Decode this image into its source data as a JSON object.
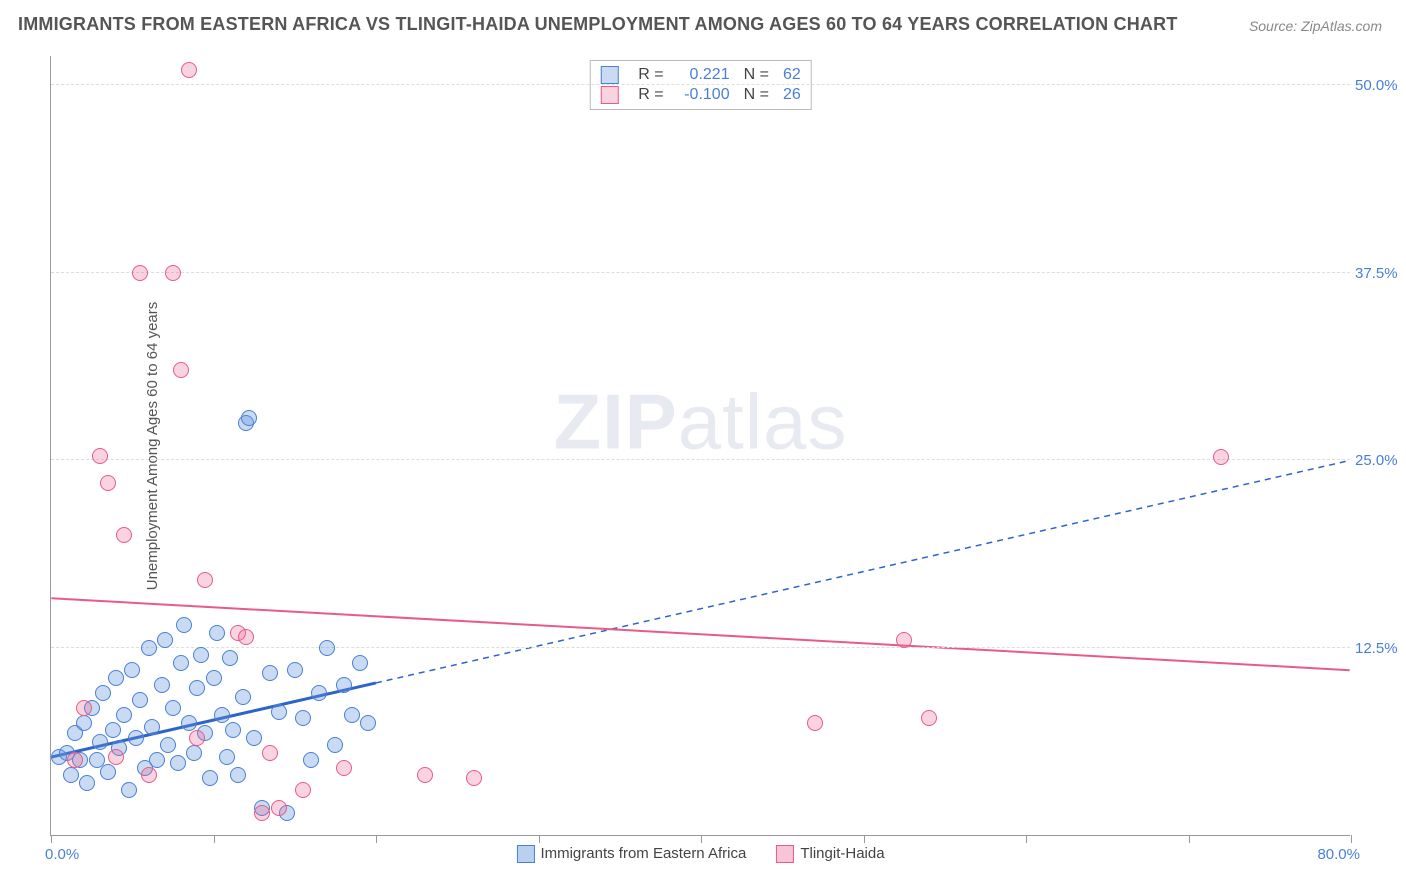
{
  "chart": {
    "type": "scatter",
    "title": "IMMIGRANTS FROM EASTERN AFRICA VS TLINGIT-HAIDA UNEMPLOYMENT AMONG AGES 60 TO 64 YEARS CORRELATION CHART",
    "source": "Source: ZipAtlas.com",
    "ylabel": "Unemployment Among Ages 60 to 64 years",
    "watermark_bold": "ZIP",
    "watermark_thin": "atlas",
    "background_color": "#ffffff",
    "grid_color": "#dddddd",
    "axis_color": "#999999",
    "label_color": "#4a7fd8",
    "xlim": [
      0,
      80
    ],
    "ylim": [
      0,
      52
    ],
    "ytick_positions": [
      12.5,
      25.0,
      37.5,
      50.0
    ],
    "ytick_labels": [
      "12.5%",
      "25.0%",
      "37.5%",
      "50.0%"
    ],
    "xticks_minor": [
      0,
      10,
      20,
      30,
      40,
      50,
      60,
      70,
      80
    ],
    "xtick_left": "0.0%",
    "xtick_right": "80.0%",
    "marker_radius": 8,
    "series": [
      {
        "name": "Immigrants from Eastern Africa",
        "fill": "rgba(100,150,220,0.35)",
        "stroke": "#4a7fd8",
        "r_label": "R =",
        "r_value": "0.221",
        "n_label": "N =",
        "n_value": "62",
        "trend": {
          "color": "#2e63c9",
          "width": 3,
          "solid_x_end": 20,
          "y_at_x0": 5.2,
          "y_at_x80": 25.0
        },
        "points": [
          [
            0.5,
            5.2
          ],
          [
            1.0,
            5.5
          ],
          [
            1.2,
            4.0
          ],
          [
            1.5,
            6.8
          ],
          [
            1.8,
            5.0
          ],
          [
            2.0,
            7.5
          ],
          [
            2.2,
            3.5
          ],
          [
            2.5,
            8.5
          ],
          [
            2.8,
            5.0
          ],
          [
            3.0,
            6.2
          ],
          [
            3.2,
            9.5
          ],
          [
            3.5,
            4.2
          ],
          [
            3.8,
            7.0
          ],
          [
            4.0,
            10.5
          ],
          [
            4.2,
            5.8
          ],
          [
            4.5,
            8.0
          ],
          [
            4.8,
            3.0
          ],
          [
            5.0,
            11.0
          ],
          [
            5.2,
            6.5
          ],
          [
            5.5,
            9.0
          ],
          [
            5.8,
            4.5
          ],
          [
            6.0,
            12.5
          ],
          [
            6.2,
            7.2
          ],
          [
            6.5,
            5.0
          ],
          [
            6.8,
            10.0
          ],
          [
            7.0,
            13.0
          ],
          [
            7.2,
            6.0
          ],
          [
            7.5,
            8.5
          ],
          [
            7.8,
            4.8
          ],
          [
            8.0,
            11.5
          ],
          [
            8.2,
            14.0
          ],
          [
            8.5,
            7.5
          ],
          [
            8.8,
            5.5
          ],
          [
            9.0,
            9.8
          ],
          [
            9.2,
            12.0
          ],
          [
            9.5,
            6.8
          ],
          [
            9.8,
            3.8
          ],
          [
            10.0,
            10.5
          ],
          [
            10.2,
            13.5
          ],
          [
            10.5,
            8.0
          ],
          [
            10.8,
            5.2
          ],
          [
            11.0,
            11.8
          ],
          [
            11.2,
            7.0
          ],
          [
            11.5,
            4.0
          ],
          [
            11.8,
            9.2
          ],
          [
            12.0,
            27.5
          ],
          [
            12.2,
            27.8
          ],
          [
            12.5,
            6.5
          ],
          [
            13.0,
            1.8
          ],
          [
            13.5,
            10.8
          ],
          [
            14.0,
            8.2
          ],
          [
            14.5,
            1.5
          ],
          [
            15.0,
            11.0
          ],
          [
            15.5,
            7.8
          ],
          [
            16.0,
            5.0
          ],
          [
            16.5,
            9.5
          ],
          [
            17.0,
            12.5
          ],
          [
            17.5,
            6.0
          ],
          [
            18.0,
            10.0
          ],
          [
            18.5,
            8.0
          ],
          [
            19.0,
            11.5
          ],
          [
            19.5,
            7.5
          ]
        ]
      },
      {
        "name": "Tlingit-Haida",
        "fill": "rgba(235,110,150,0.30)",
        "stroke": "#e85a8a",
        "r_label": "R =",
        "r_value": "-0.100",
        "n_label": "N =",
        "n_value": "26",
        "trend": {
          "color": "#e85a8a",
          "width": 2,
          "solid_x_end": 80,
          "y_at_x0": 15.8,
          "y_at_x80": 11.0
        },
        "points": [
          [
            1.5,
            5.0
          ],
          [
            2.0,
            8.5
          ],
          [
            3.0,
            25.3
          ],
          [
            3.5,
            23.5
          ],
          [
            4.0,
            5.2
          ],
          [
            4.5,
            20.0
          ],
          [
            5.5,
            37.5
          ],
          [
            6.0,
            4.0
          ],
          [
            7.5,
            37.5
          ],
          [
            8.0,
            31.0
          ],
          [
            8.5,
            51.0
          ],
          [
            9.0,
            6.5
          ],
          [
            9.5,
            17.0
          ],
          [
            11.5,
            13.5
          ],
          [
            12.0,
            13.2
          ],
          [
            13.0,
            1.5
          ],
          [
            13.5,
            5.5
          ],
          [
            14.0,
            1.8
          ],
          [
            15.5,
            3.0
          ],
          [
            18.0,
            4.5
          ],
          [
            23.0,
            4.0
          ],
          [
            26.0,
            3.8
          ],
          [
            47.0,
            7.5
          ],
          [
            52.5,
            13.0
          ],
          [
            54.0,
            7.8
          ],
          [
            72.0,
            25.2
          ]
        ]
      }
    ],
    "bottom_legend": [
      {
        "label": "Immigrants from Eastern Africa",
        "fill": "rgba(100,150,220,0.45)",
        "stroke": "#4a7fd8"
      },
      {
        "label": "Tlingit-Haida",
        "fill": "rgba(235,110,150,0.40)",
        "stroke": "#e85a8a"
      }
    ]
  }
}
